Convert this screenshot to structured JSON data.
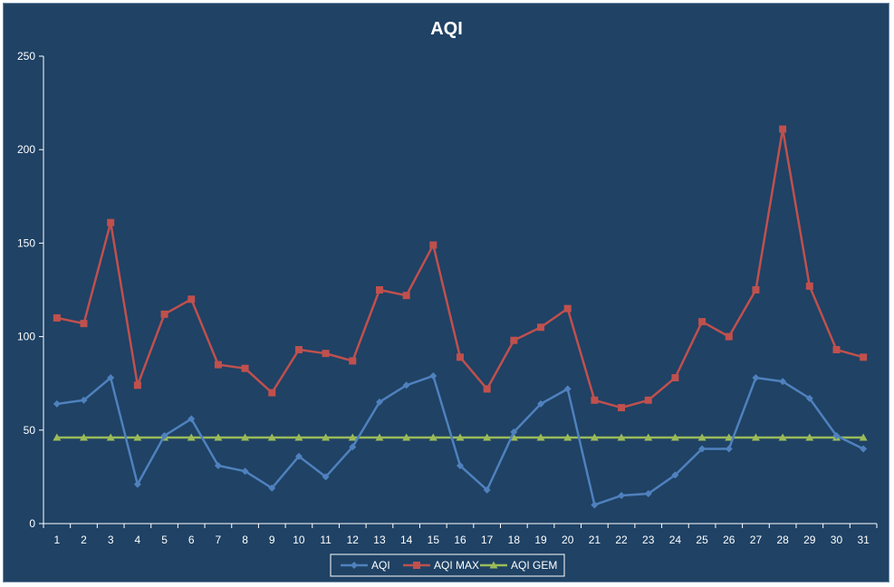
{
  "chart_data": {
    "type": "line",
    "title": "AQI",
    "xlabel": "",
    "ylabel": "",
    "ylim": [
      0,
      250
    ],
    "yticks": [
      0,
      50,
      100,
      150,
      200,
      250
    ],
    "grid": false,
    "legend_position": "bottom",
    "categories": [
      "1",
      "2",
      "3",
      "4",
      "5",
      "6",
      "7",
      "8",
      "9",
      "10",
      "11",
      "12",
      "13",
      "14",
      "15",
      "16",
      "17",
      "18",
      "19",
      "20",
      "21",
      "22",
      "23",
      "24",
      "25",
      "26",
      "27",
      "28",
      "29",
      "30",
      "31"
    ],
    "series": [
      {
        "name": "AQI",
        "color": "#4f81bd",
        "marker": "diamond",
        "values": [
          64,
          66,
          78,
          21,
          47,
          56,
          31,
          28,
          19,
          36,
          25,
          41,
          65,
          74,
          79,
          31,
          18,
          49,
          64,
          72,
          10,
          15,
          16,
          26,
          40,
          40,
          78,
          76,
          67,
          47,
          40
        ]
      },
      {
        "name": "AQI MAX",
        "color": "#c0504d",
        "marker": "square",
        "values": [
          110,
          107,
          161,
          74,
          112,
          120,
          85,
          83,
          70,
          93,
          91,
          87,
          125,
          122,
          149,
          89,
          72,
          98,
          105,
          115,
          66,
          62,
          66,
          78,
          108,
          100,
          125,
          211,
          127,
          93,
          89
        ]
      },
      {
        "name": "AQI GEM",
        "color": "#9bbb59",
        "marker": "triangle",
        "values": [
          46,
          46,
          46,
          46,
          46,
          46,
          46,
          46,
          46,
          46,
          46,
          46,
          46,
          46,
          46,
          46,
          46,
          46,
          46,
          46,
          46,
          46,
          46,
          46,
          46,
          46,
          46,
          46,
          46,
          46,
          46
        ]
      }
    ]
  }
}
